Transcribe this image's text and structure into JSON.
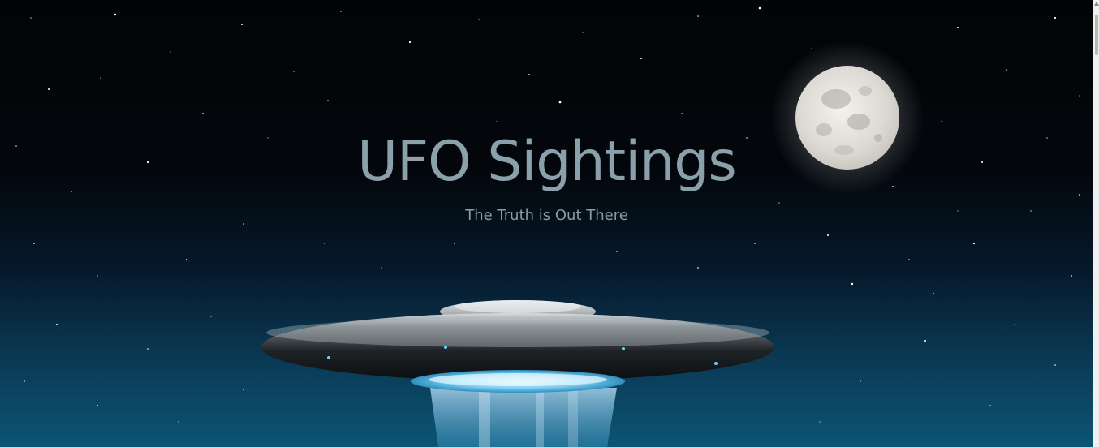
{
  "hero": {
    "title": "UFO Sightings",
    "subtitle": "The Truth is Out There"
  },
  "colors": {
    "title": "#8aa0aa",
    "subtitle": "#8a9ba4",
    "sky_top": "#020305",
    "sky_bottom": "#0c5474"
  },
  "images": [
    "moon",
    "ufo-saucer",
    "tractor-beam",
    "starfield"
  ]
}
